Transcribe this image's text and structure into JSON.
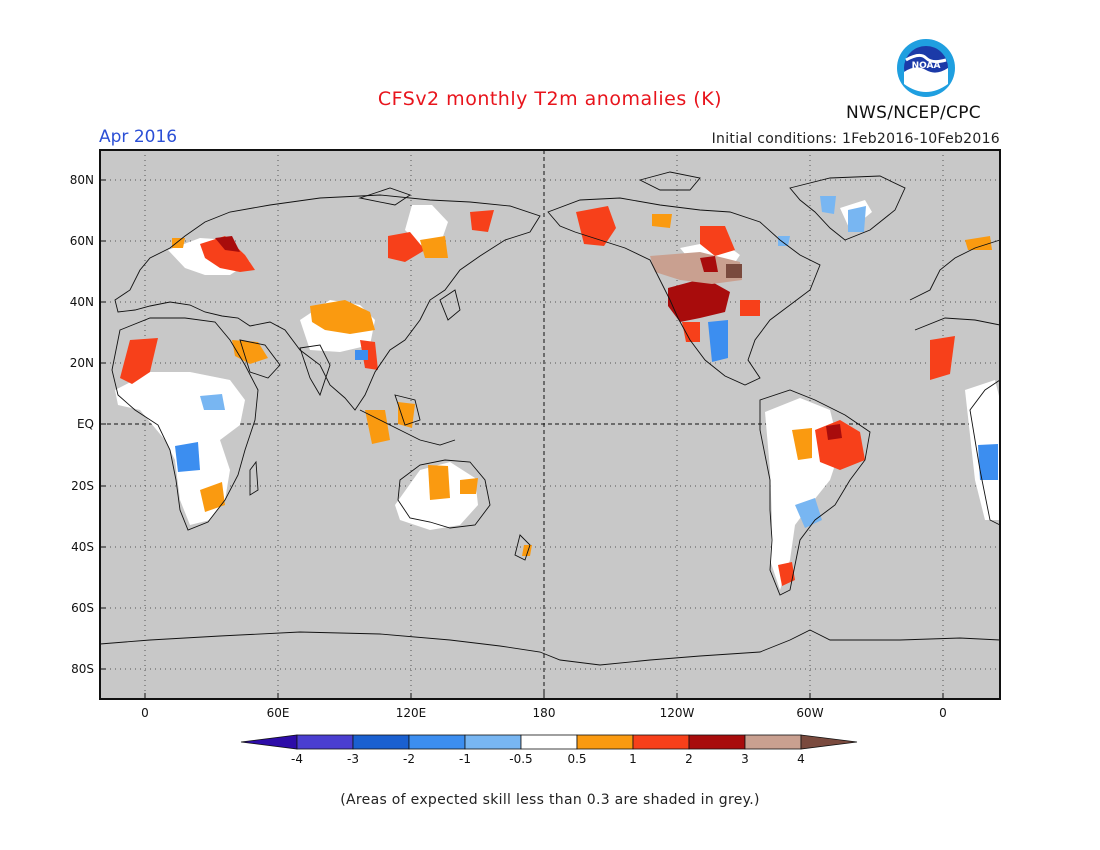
{
  "title": "CFSv2 monthly T2m anomalies (K)",
  "month": "Apr 2016",
  "initial_conditions": "Initial conditions: 1Feb2016-10Feb2016",
  "agency": "NWS/NCEP/CPC",
  "logo_text": "NOAA",
  "footnote": "(Areas of expected skill less than 0.3 are shaded in grey.)",
  "lat_labels": [
    "80N",
    "60N",
    "40N",
    "20N",
    "EQ",
    "20S",
    "40S",
    "60S",
    "80S"
  ],
  "lon_labels": [
    "0",
    "60E",
    "120E",
    "180",
    "120W",
    "60W",
    "0"
  ],
  "colorbar": {
    "ticks": [
      "-4",
      "-3",
      "-2",
      "-1",
      "-0.5",
      "0.5",
      "1",
      "2",
      "3",
      "4"
    ],
    "colors": [
      "#2d0ca8",
      "#4a3ed0",
      "#1a60d0",
      "#3c8ef0",
      "#78b6f2",
      "#ffffff",
      "#fa9a10",
      "#f7401a",
      "#a80c0c",
      "#c9a090",
      "#7a4a3e"
    ]
  },
  "colors": {
    "skill_mask_grey": "#c8c8c8",
    "title_red": "#e8141c",
    "month_blue": "#2b4fd6"
  }
}
